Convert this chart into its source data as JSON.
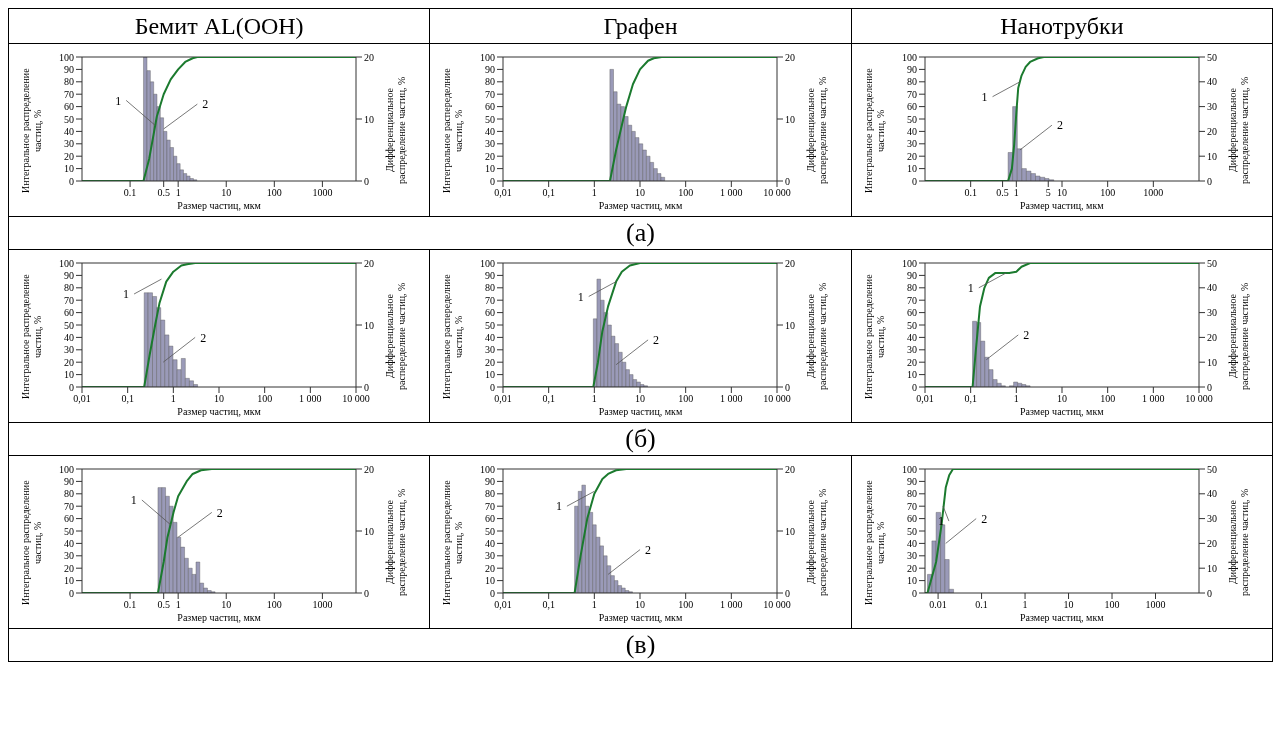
{
  "chart_data": [
    {
      "type": "histogram",
      "title": "Бемит AL(OOH)",
      "xlabel": "Размер частиц, мкм",
      "ylabel": "Интегральное распределение частиц, %",
      "y2label": "Дифференциальное распределение частиц, %",
      "log": "x",
      "xlim": [
        0.01,
        5000
      ],
      "xticks": [
        0.1,
        0.5,
        1,
        10,
        100,
        1000
      ],
      "ylim": [
        0,
        100
      ],
      "yticks": [
        0,
        10,
        20,
        30,
        40,
        50,
        60,
        70,
        80,
        90,
        100
      ],
      "y2lim": [
        0,
        20
      ],
      "y2ticks": [
        0,
        10,
        20
      ],
      "series": [
        {
          "type": "histogram",
          "axis": "y2",
          "color": "#9a9ab8",
          "bins": [
            0.19,
            0.225,
            0.264,
            0.31,
            0.363,
            0.425,
            0.498,
            0.584,
            0.684,
            0.802,
            0.94,
            1.1,
            1.29,
            1.51,
            1.77,
            2.08,
            2.44
          ],
          "values": [
            20,
            17.8,
            16,
            14,
            12,
            10.2,
            8,
            6.6,
            5.4,
            4,
            2.8,
            1.8,
            1.2,
            0.8,
            0.4,
            0.2
          ]
        },
        {
          "type": "line",
          "color": "#1b7a2e",
          "x": [
            0.01,
            0.19,
            0.25,
            0.3,
            0.36,
            0.5,
            0.7,
            1,
            1.4,
            2,
            2.5,
            5000
          ],
          "values": [
            0,
            0,
            18,
            35,
            52,
            70,
            82,
            90,
            96,
            99,
            100,
            100
          ]
        }
      ],
      "annotations": [
        {
          "text": "1",
          "x": 0.33,
          "y": 45
        },
        {
          "text": "2",
          "x": 0.5,
          "y": 42
        }
      ]
    },
    {
      "type": "histogram",
      "title": "Графен",
      "xlabel": "Размер частиц, мкм",
      "ylabel": "Интегральное распеределние частиц, %",
      "y2label": "Дифференциальное распеределние частиц, %",
      "log": "x",
      "xlim": [
        0.01,
        10000
      ],
      "xticks": [
        {
          "value": 0.01,
          "label": "0,01"
        },
        {
          "value": 0.1,
          "label": "0,1"
        },
        1,
        10,
        100,
        {
          "value": 1000,
          "label": "1 000"
        },
        {
          "value": 10000,
          "label": "10 000"
        }
      ],
      "ylim": [
        0,
        100
      ],
      "yticks": [
        0,
        10,
        20,
        30,
        40,
        50,
        60,
        70,
        80,
        90,
        100
      ],
      "y2lim": [
        0,
        20
      ],
      "y2ticks": [
        0,
        10,
        20
      ],
      "series": [
        {
          "type": "histogram",
          "axis": "y2",
          "color": "#9a9ab8",
          "bins": [
            2.19,
            2.63,
            3.16,
            3.8,
            4.57,
            5.5,
            6.6,
            7.9,
            9.5,
            11.5,
            13.8,
            16.6,
            19.9,
            24,
            28.8,
            34.7
          ],
          "values": [
            18,
            14.4,
            12.4,
            12,
            10.4,
            9,
            8,
            7,
            6,
            5,
            4,
            3,
            2,
            1.2,
            0.6
          ]
        },
        {
          "type": "line",
          "color": "#1b7a2e",
          "x": [
            0.01,
            2.2,
            3,
            4,
            5,
            7,
            10,
            15,
            20,
            30,
            10000
          ],
          "values": [
            0,
            0,
            25,
            45,
            60,
            78,
            90,
            97,
            99,
            100,
            100
          ]
        }
      ],
      "annotations": [
        "(а)"
      ]
    },
    {
      "type": "histogram",
      "title": "Нанотрубки",
      "xlabel": "Размер частиц, мкм",
      "ylabel": "Интегральное распределение частиц, %",
      "y2label": "Дифференциальное распределение частиц, %",
      "log": "x",
      "xlim": [
        0.01,
        10000
      ],
      "xticks": [
        0.1,
        0.5,
        1,
        5,
        10,
        100,
        1000
      ],
      "ylim": [
        0,
        100
      ],
      "yticks": [
        0,
        10,
        20,
        30,
        40,
        50,
        60,
        70,
        80,
        90,
        100
      ],
      "y2lim": [
        0,
        50
      ],
      "y2ticks": [
        0,
        10,
        20,
        30,
        40,
        50
      ],
      "series": [
        {
          "type": "histogram",
          "axis": "y2",
          "color": "#9a9ab8",
          "bins": [
            0.66,
            0.83,
            1.05,
            1.32,
            1.66,
            2.09,
            2.63,
            3.3,
            4.2,
            5.2,
            6.6
          ],
          "values": [
            11.5,
            30,
            13,
            5,
            4,
            3,
            2,
            1.5,
            1,
            0.5
          ]
        },
        {
          "type": "line",
          "color": "#1b7a2e",
          "x": [
            0.01,
            0.66,
            0.8,
            0.9,
            1,
            1.1,
            1.3,
            1.6,
            2,
            3,
            4,
            10000
          ],
          "values": [
            0,
            0,
            10,
            30,
            55,
            75,
            85,
            92,
            96,
            99,
            100,
            100
          ]
        }
      ],
      "annotations": [
        {
          "text": "1",
          "x": 1.2,
          "y": 80
        },
        {
          "text": "2",
          "x": 1.2,
          "y": 25
        }
      ]
    },
    {
      "type": "histogram",
      "xlabel": "Размер частиц, мкм",
      "ylabel": "Интегральное распределение частиц, %",
      "y2label": "Дифференциальное распеределние частиц, %",
      "log": "x",
      "xlim": [
        0.01,
        10000
      ],
      "xticks": [
        {
          "value": 0.01,
          "label": "0,01"
        },
        {
          "value": 0.1,
          "label": "0,1"
        },
        1,
        10,
        100,
        {
          "value": 1000,
          "label": "1 000"
        },
        {
          "value": 10000,
          "label": "10 000"
        }
      ],
      "ylim": [
        0,
        100
      ],
      "yticks": [
        0,
        10,
        20,
        30,
        40,
        50,
        60,
        70,
        80,
        90,
        100
      ],
      "y2lim": [
        0,
        20
      ],
      "y2ticks": [
        0,
        10,
        20
      ],
      "series": [
        {
          "type": "histogram",
          "axis": "y2",
          "color": "#9a9ab8",
          "bins": [
            0.23,
            0.28,
            0.35,
            0.43,
            0.53,
            0.65,
            0.8,
            0.98,
            1.21,
            1.49,
            1.83,
            2.25,
            2.77,
            3.4
          ],
          "values": [
            15.2,
            15.2,
            14.6,
            12.8,
            10.8,
            8.4,
            6.6,
            4.4,
            2.8,
            4.6,
            1.4,
            1,
            0.4
          ]
        },
        {
          "type": "line",
          "color": "#1b7a2e",
          "x": [
            0.01,
            0.23,
            0.3,
            0.4,
            0.5,
            0.7,
            1,
            1.5,
            2,
            3,
            10000
          ],
          "values": [
            0,
            0,
            25,
            50,
            68,
            85,
            93,
            98,
            99,
            100,
            100
          ]
        }
      ],
      "annotations": [
        {
          "text": "1",
          "x": 0.55,
          "y": 87
        },
        {
          "text": "2",
          "x": 0.6,
          "y": 20
        }
      ]
    },
    {
      "type": "histogram",
      "xlabel": "Размер частиц, мкм",
      "ylabel": "Интегральное распеределние частиц, %",
      "y2label": "Дифференциальное распеределние частиц, %",
      "log": "x",
      "xlim": [
        0.01,
        10000
      ],
      "xticks": [
        {
          "value": 0.01,
          "label": "0,01"
        },
        {
          "value": 0.1,
          "label": "0,1"
        },
        1,
        10,
        100,
        {
          "value": 1000,
          "label": "1 000"
        },
        {
          "value": 10000,
          "label": "10 000"
        }
      ],
      "ylim": [
        0,
        100
      ],
      "yticks": [
        0,
        10,
        20,
        30,
        40,
        50,
        60,
        70,
        80,
        90,
        100
      ],
      "y2lim": [
        0,
        20
      ],
      "y2ticks": [
        0,
        10,
        20
      ],
      "series": [
        {
          "type": "histogram",
          "axis": "y2",
          "color": "#9a9ab8",
          "bins": [
            0.95,
            1.14,
            1.37,
            1.64,
            1.97,
            2.36,
            2.83,
            3.4,
            4.08,
            4.9,
            5.88,
            7.05,
            8.46,
            10.2,
            12.2,
            14.6
          ],
          "values": [
            11,
            17.4,
            14,
            12,
            10,
            8.2,
            7,
            5.6,
            4,
            2.8,
            2,
            1.2,
            0.8,
            0.4,
            0.2
          ]
        },
        {
          "type": "line",
          "color": "#1b7a2e",
          "x": [
            0.01,
            0.95,
            1.2,
            1.5,
            2,
            3,
            4,
            6,
            10,
            10000
          ],
          "values": [
            0,
            0,
            20,
            45,
            65,
            85,
            93,
            98,
            100,
            100
          ]
        }
      ],
      "annotations": [
        "(б)",
        {
          "text": "1",
          "x": 3,
          "y": 85
        },
        {
          "text": "2",
          "x": 3,
          "y": 18
        }
      ]
    },
    {
      "type": "histogram",
      "xlabel": "Размер частиц, мкм",
      "ylabel": "Интегральное распределение частиц, %",
      "y2label": "Дифференциальное распределение частиц, %",
      "log": "x",
      "xlim": [
        0.01,
        10000
      ],
      "xticks": [
        {
          "value": 0.01,
          "label": "0,01"
        },
        {
          "value": 0.1,
          "label": "0,1"
        },
        1,
        10,
        100,
        {
          "value": 1000,
          "label": "1 000"
        },
        {
          "value": 10000,
          "label": "10 000"
        }
      ],
      "ylim": [
        0,
        100
      ],
      "yticks": [
        0,
        10,
        20,
        30,
        40,
        50,
        60,
        70,
        80,
        90,
        100
      ],
      "y2lim": [
        0,
        50
      ],
      "y2ticks": [
        0,
        10,
        20,
        30,
        40,
        50
      ],
      "series": [
        {
          "type": "histogram",
          "axis": "y2",
          "color": "#9a9ab8",
          "bins": [
            0.11,
            0.135,
            0.166,
            0.204,
            0.251,
            0.309,
            0.38,
            0.468,
            0.575,
            0.708,
            0.871,
            1.07,
            1.32,
            1.62,
            2
          ],
          "values": [
            26.5,
            26,
            18.5,
            12,
            7,
            3,
            1.5,
            0.5,
            0,
            0.5,
            2,
            1.5,
            1,
            0.5
          ]
        },
        {
          "type": "line",
          "color": "#1b7a2e",
          "x": [
            0.01,
            0.11,
            0.13,
            0.16,
            0.2,
            0.25,
            0.35,
            0.7,
            1,
            1.3,
            2,
            10000
          ],
          "values": [
            0,
            0,
            30,
            65,
            80,
            88,
            92,
            92,
            93,
            97,
            100,
            100
          ]
        }
      ],
      "annotations": [
        {
          "text": "1",
          "x": 0.6,
          "y": 92
        },
        {
          "text": "2",
          "x": 0.22,
          "y": 22
        }
      ]
    },
    {
      "type": "histogram",
      "xlabel": "Размер частиц, мкм",
      "ylabel": "Интегральное распределение частиц, %",
      "y2label": "Дифференциальное распределение частиц, %",
      "log": "x",
      "xlim": [
        0.01,
        5000
      ],
      "xticks": [
        0.1,
        0.5,
        1,
        10,
        100,
        1000
      ],
      "ylim": [
        0,
        100
      ],
      "yticks": [
        0,
        10,
        20,
        30,
        40,
        50,
        60,
        70,
        80,
        90,
        100
      ],
      "y2lim": [
        0,
        20
      ],
      "y2ticks": [
        0,
        10,
        20
      ],
      "series": [
        {
          "type": "histogram",
          "axis": "y2",
          "color": "#9a9ab8",
          "bins": [
            0.38,
            0.456,
            0.547,
            0.657,
            0.788,
            0.946,
            1.13,
            1.36,
            1.63,
            1.96,
            2.35,
            2.82,
            3.39,
            4.07,
            4.88,
            5.86
          ],
          "values": [
            17,
            17,
            15.6,
            14,
            11.4,
            9,
            7.4,
            5.6,
            4,
            3,
            5,
            1.6,
            0.8,
            0.4,
            0.2
          ]
        },
        {
          "type": "line",
          "color": "#1b7a2e",
          "x": [
            0.01,
            0.38,
            0.5,
            0.6,
            0.8,
            1,
            1.5,
            2,
            3,
            5,
            5000
          ],
          "values": [
            0,
            0,
            25,
            45,
            65,
            78,
            90,
            96,
            99,
            100,
            100
          ]
        }
      ],
      "annotations": [
        {
          "text": "1",
          "x": 0.7,
          "y": 55
        },
        {
          "text": "2",
          "x": 1,
          "y": 45
        }
      ]
    },
    {
      "type": "histogram",
      "xlabel": "Размер частиц, мкм",
      "ylabel": "Интегральное распеределние частиц, %",
      "y2label": "Дифференциальное распеределние частиц, %",
      "log": "x",
      "xlim": [
        0.01,
        10000
      ],
      "xticks": [
        {
          "value": 0.01,
          "label": "0,01"
        },
        {
          "value": 0.1,
          "label": "0,1"
        },
        1,
        10,
        100,
        {
          "value": 1000,
          "label": "1 000"
        },
        {
          "value": 10000,
          "label": "10 000"
        }
      ],
      "ylim": [
        0,
        100
      ],
      "yticks": [
        0,
        10,
        20,
        30,
        40,
        50,
        60,
        70,
        80,
        90,
        100
      ],
      "y2lim": [
        0,
        20
      ],
      "y2ticks": [
        0,
        10,
        20
      ],
      "series": [
        {
          "type": "histogram",
          "axis": "y2",
          "color": "#9a9ab8",
          "bins": [
            0.37,
            0.444,
            0.533,
            0.639,
            0.767,
            0.921,
            1.1,
            1.33,
            1.59,
            1.91,
            2.29,
            2.75,
            3.3,
            3.96,
            4.75,
            5.7,
            6.84
          ],
          "values": [
            14,
            16.4,
            17.4,
            14,
            13,
            11,
            9,
            7.6,
            6,
            4.4,
            2.8,
            2,
            1.2,
            0.8,
            0.4,
            0.2
          ]
        },
        {
          "type": "line",
          "color": "#1b7a2e",
          "x": [
            0.01,
            0.37,
            0.5,
            0.7,
            1,
            1.5,
            2,
            3,
            5,
            10000
          ],
          "values": [
            0,
            0,
            30,
            60,
            80,
            92,
            96,
            99,
            100,
            100
          ]
        }
      ],
      "annotations": [
        "(в)",
        {
          "text": "1",
          "x": 1,
          "y": 82
        },
        {
          "text": "2",
          "x": 2,
          "y": 15
        }
      ]
    },
    {
      "type": "histogram",
      "xlabel": "Размер частиц, мкм",
      "ylabel": "Интегральное распределение частиц, %",
      "y2label": "Дифференциальное распределение частиц, %",
      "log": "x",
      "xlim": [
        0.005,
        10000
      ],
      "xticks": [
        0.01,
        0.1,
        1,
        10,
        100,
        1000
      ],
      "ylim": [
        0,
        100
      ],
      "yticks": [
        0,
        10,
        20,
        30,
        40,
        50,
        60,
        70,
        80,
        90,
        100
      ],
      "y2lim": [
        0,
        50
      ],
      "y2ticks": [
        0,
        10,
        20,
        30,
        40,
        50
      ],
      "series": [
        {
          "type": "histogram",
          "axis": "y2",
          "color": "#9a9ab8",
          "bins": [
            0.0057,
            0.0072,
            0.009,
            0.0114,
            0.0143,
            0.018,
            0.0227
          ],
          "values": [
            7.5,
            21,
            32.5,
            27.5,
            13.5,
            1.5
          ]
        },
        {
          "type": "line",
          "color": "#1b7a2e",
          "x": [
            0.005,
            0.0057,
            0.009,
            0.012,
            0.015,
            0.018,
            0.022,
            10000
          ],
          "values": [
            0,
            0,
            25,
            55,
            85,
            95,
            100,
            100
          ]
        }
      ],
      "annotations": [
        {
          "text": "1",
          "x": 0.013,
          "y": 70
        },
        {
          "text": "2",
          "x": 0.015,
          "y": 40
        }
      ]
    }
  ]
}
